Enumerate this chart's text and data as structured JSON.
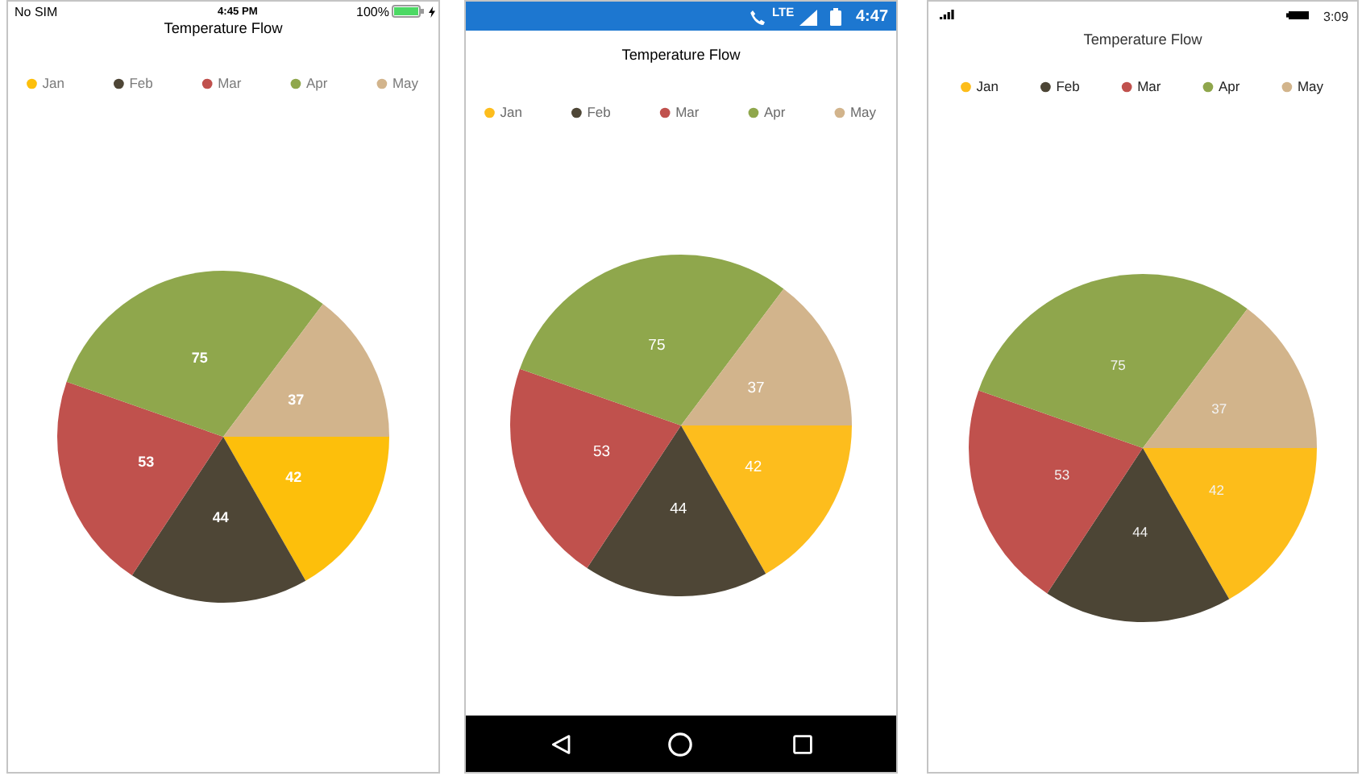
{
  "chart_data": [
    {
      "type": "pie",
      "title": "Temperature Flow",
      "categories": [
        "Jan",
        "Feb",
        "Mar",
        "Apr",
        "May"
      ],
      "values": [
        42,
        44,
        53,
        75,
        37
      ],
      "colors": [
        "#fdbf0b",
        "#4e4636",
        "#c0514d",
        "#8fa74c",
        "#d2b48c"
      ],
      "legend": "top",
      "data_labels": true,
      "annotations": [
        "No SIM",
        "4:45 PM",
        "100%"
      ]
    },
    {
      "type": "pie",
      "title": "Temperature Flow",
      "categories": [
        "Jan",
        "Feb",
        "Mar",
        "Apr",
        "May"
      ],
      "values": [
        42,
        44,
        53,
        75,
        37
      ],
      "colors": [
        "#fdbd1d",
        "#4e4636",
        "#c0514d",
        "#8fa74c",
        "#d2b48c"
      ],
      "legend": "top",
      "data_labels": true,
      "annotations": [
        "LTE",
        "4:47"
      ]
    },
    {
      "type": "pie",
      "title": "Temperature Flow",
      "categories": [
        "Jan",
        "Feb",
        "Mar",
        "Apr",
        "May"
      ],
      "values": [
        42,
        44,
        53,
        75,
        37
      ],
      "colors": [
        "#fdbd1a",
        "#4c4535",
        "#c0514d",
        "#8fa64c",
        "#d2b48b"
      ],
      "legend": "top",
      "data_labels": true,
      "annotations": [
        "3:09"
      ]
    }
  ]
}
